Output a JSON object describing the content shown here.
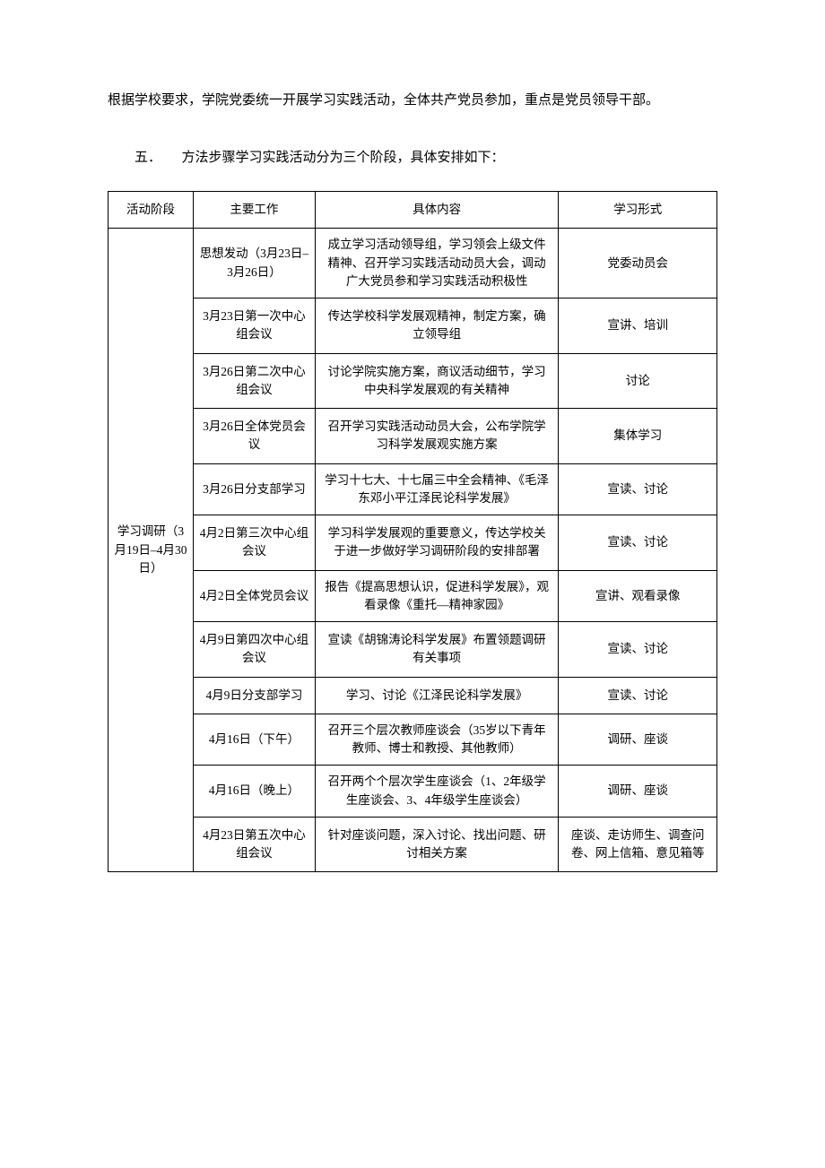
{
  "intro": "根据学校要求，学院党委统一开展学习实践活动，全体共产党员参加，重点是党员领导干部。",
  "section": {
    "number": "五．",
    "title": "方法步骤学习实践活动分为三个阶段，具体安排如下："
  },
  "table": {
    "headers": {
      "stage": "活动阶段",
      "work": "主要工作",
      "content": "具体内容",
      "format": "学习形式"
    },
    "stage_label": "学习调研（3月19日–4月30日）",
    "rows": [
      {
        "work": "思想发动（3月23日–3月26日）",
        "content": "成立学习活动领导组，学习领会上级文件精神、召开学习实践活动动员大会，调动广大党员参和学习实践活动积极性",
        "format": "党委动员会"
      },
      {
        "work": "3月23日第一次中心组会议",
        "content": "传达学校科学发展观精神，制定方案，确立领导组",
        "format": "宣讲、培训"
      },
      {
        "work": "3月26日第二次中心组会议",
        "content": "讨论学院实施方案，商议活动细节，学习中央科学发展观的有关精神",
        "format": "讨论"
      },
      {
        "work": "3月26日全体党员会议",
        "content": "召开学习实践活动动员大会，公布学院学习科学发展观实施方案",
        "format": "集体学习"
      },
      {
        "work": "3月26日分支部学习",
        "content": "学习十七大、十七届三中全会精神、《毛泽东邓小平江泽民论科学发展》",
        "format": "宣读、讨论"
      },
      {
        "work": "4月2日第三次中心组会议",
        "content": "学习科学发展观的重要意义，传达学校关于进一步做好学习调研阶段的安排部署",
        "format": "宣读、讨论"
      },
      {
        "work": "4月2日全体党员会议",
        "content": "报告《提高思想认识，促进科学发展》，观看录像《重托—精神家园》",
        "format": "宣讲、观看录像"
      },
      {
        "work": "4月9日第四次中心组会议",
        "content": "宣读《胡锦涛论科学发展》布置领题调研有关事项",
        "format": "宣读、讨论"
      },
      {
        "work": "4月9日分支部学习",
        "content": "学习、讨论《江泽民论科学发展》",
        "format": "宣读、讨论"
      },
      {
        "work": "4月16日（下午）",
        "content": "召开三个层次教师座谈会（35岁以下青年教师、博士和教授、其他教师）",
        "format": "调研、座谈"
      },
      {
        "work": "4月16日（晚上）",
        "content": "召开两个个层次学生座谈会（1、2年级学生座谈会、3、4年级学生座谈会）",
        "format": "调研、座谈"
      },
      {
        "work": "4月23日第五次中心组会议",
        "content": "针对座谈问题，深入讨论、找出问题、研讨相关方案",
        "format": "座谈、走访师生、调查问卷、网上信箱、意见箱等"
      }
    ]
  }
}
